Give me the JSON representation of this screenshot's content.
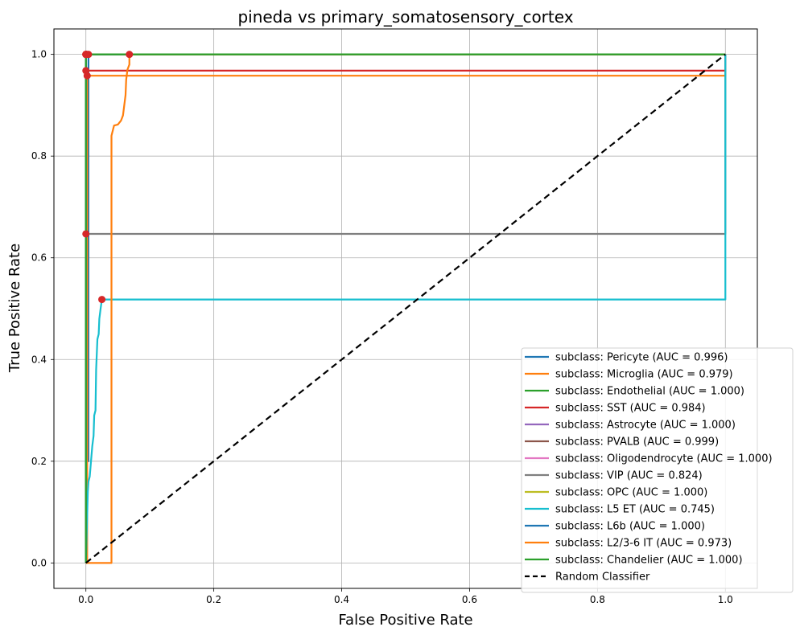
{
  "chart_data": {
    "type": "line",
    "title": "pineda vs primary_somatosensory_cortex",
    "xlabel": "False Positive Rate",
    "ylabel": "True Positive Rate",
    "xlim": [
      -0.05,
      1.05
    ],
    "ylim": [
      -0.05,
      1.05
    ],
    "xticks": [
      "0.0",
      "0.2",
      "0.4",
      "0.6",
      "0.8",
      "1.0"
    ],
    "yticks": [
      "0.0",
      "0.2",
      "0.4",
      "0.6",
      "0.8",
      "1.0"
    ],
    "grid": true,
    "legend_position": "lower-right",
    "series": [
      {
        "name": "subclass: Pericyte (AUC = 0.996)",
        "color": "#1f77b4",
        "points": [
          [
            0,
            0
          ],
          [
            0,
            0.2
          ],
          [
            0.004,
            0.2
          ],
          [
            0.004,
            1.0
          ],
          [
            1.0,
            1.0
          ]
        ],
        "marker": [
          0.004,
          1.0
        ]
      },
      {
        "name": "subclass: Microglia (AUC = 0.979)",
        "color": "#ff7f0e",
        "points": [
          [
            0,
            0
          ],
          [
            0.002,
            0
          ],
          [
            0.002,
            0.958
          ],
          [
            1.0,
            0.958
          ],
          [
            1.0,
            1.0
          ]
        ],
        "marker": [
          0.002,
          0.958
        ]
      },
      {
        "name": "subclass: Endothelial (AUC = 1.000)",
        "color": "#2ca02c",
        "points": [
          [
            0,
            0
          ],
          [
            0,
            1.0
          ],
          [
            1.0,
            1.0
          ]
        ],
        "marker": [
          0,
          1.0
        ]
      },
      {
        "name": "subclass: SST (AUC = 0.984)",
        "color": "#d62728",
        "points": [
          [
            0,
            0
          ],
          [
            0,
            0.968
          ],
          [
            1.0,
            0.968
          ],
          [
            1.0,
            1.0
          ]
        ],
        "marker": [
          0,
          0.968
        ]
      },
      {
        "name": "subclass: Astrocyte (AUC = 1.000)",
        "color": "#9467bd",
        "points": [
          [
            0,
            0
          ],
          [
            0,
            1.0
          ],
          [
            1.0,
            1.0
          ]
        ],
        "marker": [
          0,
          1.0
        ]
      },
      {
        "name": "subclass: PVALB (AUC = 0.999)",
        "color": "#8c564b",
        "points": [
          [
            0,
            0
          ],
          [
            0,
            1.0
          ],
          [
            1.0,
            1.0
          ]
        ],
        "marker": [
          0.001,
          1.0
        ]
      },
      {
        "name": "subclass: Oligodendrocyte (AUC = 1.000)",
        "color": "#e377c2",
        "points": [
          [
            0,
            0
          ],
          [
            0,
            1.0
          ],
          [
            1.0,
            1.0
          ]
        ],
        "marker": [
          0,
          1.0
        ]
      },
      {
        "name": "subclass: VIP (AUC = 0.824)",
        "color": "#7f7f7f",
        "points": [
          [
            0,
            0
          ],
          [
            0,
            0.647
          ],
          [
            1.0,
            0.647
          ],
          [
            1.0,
            1.0
          ]
        ],
        "marker": [
          0,
          0.647
        ]
      },
      {
        "name": "subclass: OPC (AUC = 1.000)",
        "color": "#bcbd22",
        "points": [
          [
            0,
            0
          ],
          [
            0,
            1.0
          ],
          [
            1.0,
            1.0
          ]
        ],
        "marker": [
          0,
          1.0
        ]
      },
      {
        "name": "subclass: L5 ET (AUC = 0.745)",
        "color": "#17becf",
        "points": [
          [
            0,
            0
          ],
          [
            0.003,
            0.14
          ],
          [
            0.004,
            0.16
          ],
          [
            0.006,
            0.17
          ],
          [
            0.008,
            0.2
          ],
          [
            0.01,
            0.23
          ],
          [
            0.012,
            0.25
          ],
          [
            0.013,
            0.29
          ],
          [
            0.015,
            0.3
          ],
          [
            0.016,
            0.38
          ],
          [
            0.018,
            0.44
          ],
          [
            0.02,
            0.45
          ],
          [
            0.021,
            0.48
          ],
          [
            0.023,
            0.5
          ],
          [
            0.025,
            0.518
          ],
          [
            1.0,
            0.518
          ],
          [
            1.0,
            1.0
          ]
        ],
        "marker": [
          0.025,
          0.518
        ]
      },
      {
        "name": "subclass: L6b (AUC = 1.000)",
        "color": "#1f77b4",
        "points": [
          [
            0,
            0
          ],
          [
            0,
            1.0
          ],
          [
            1.0,
            1.0
          ]
        ],
        "marker": [
          0,
          1.0
        ]
      },
      {
        "name": "subclass: L2/3-6 IT (AUC = 0.973)",
        "color": "#ff7f0e",
        "points": [
          [
            0,
            0
          ],
          [
            0.04,
            0
          ],
          [
            0.04,
            0.84
          ],
          [
            0.042,
            0.85
          ],
          [
            0.044,
            0.86
          ],
          [
            0.05,
            0.862
          ],
          [
            0.055,
            0.87
          ],
          [
            0.058,
            0.88
          ],
          [
            0.06,
            0.9
          ],
          [
            0.062,
            0.92
          ],
          [
            0.063,
            0.95
          ],
          [
            0.065,
            0.97
          ],
          [
            0.068,
            0.98
          ],
          [
            0.068,
            1.0
          ],
          [
            1.0,
            1.0
          ]
        ],
        "marker": [
          0.068,
          1.0
        ]
      },
      {
        "name": "subclass: Chandelier (AUC = 1.000)",
        "color": "#2ca02c",
        "points": [
          [
            0,
            0
          ],
          [
            0,
            1.0
          ],
          [
            1.0,
            1.0
          ]
        ],
        "marker": [
          0,
          1.0
        ]
      }
    ],
    "reference_line": {
      "name": "Random Classifier",
      "color": "#000000",
      "style": "dashed",
      "points": [
        [
          0,
          0
        ],
        [
          1,
          1
        ]
      ]
    }
  }
}
